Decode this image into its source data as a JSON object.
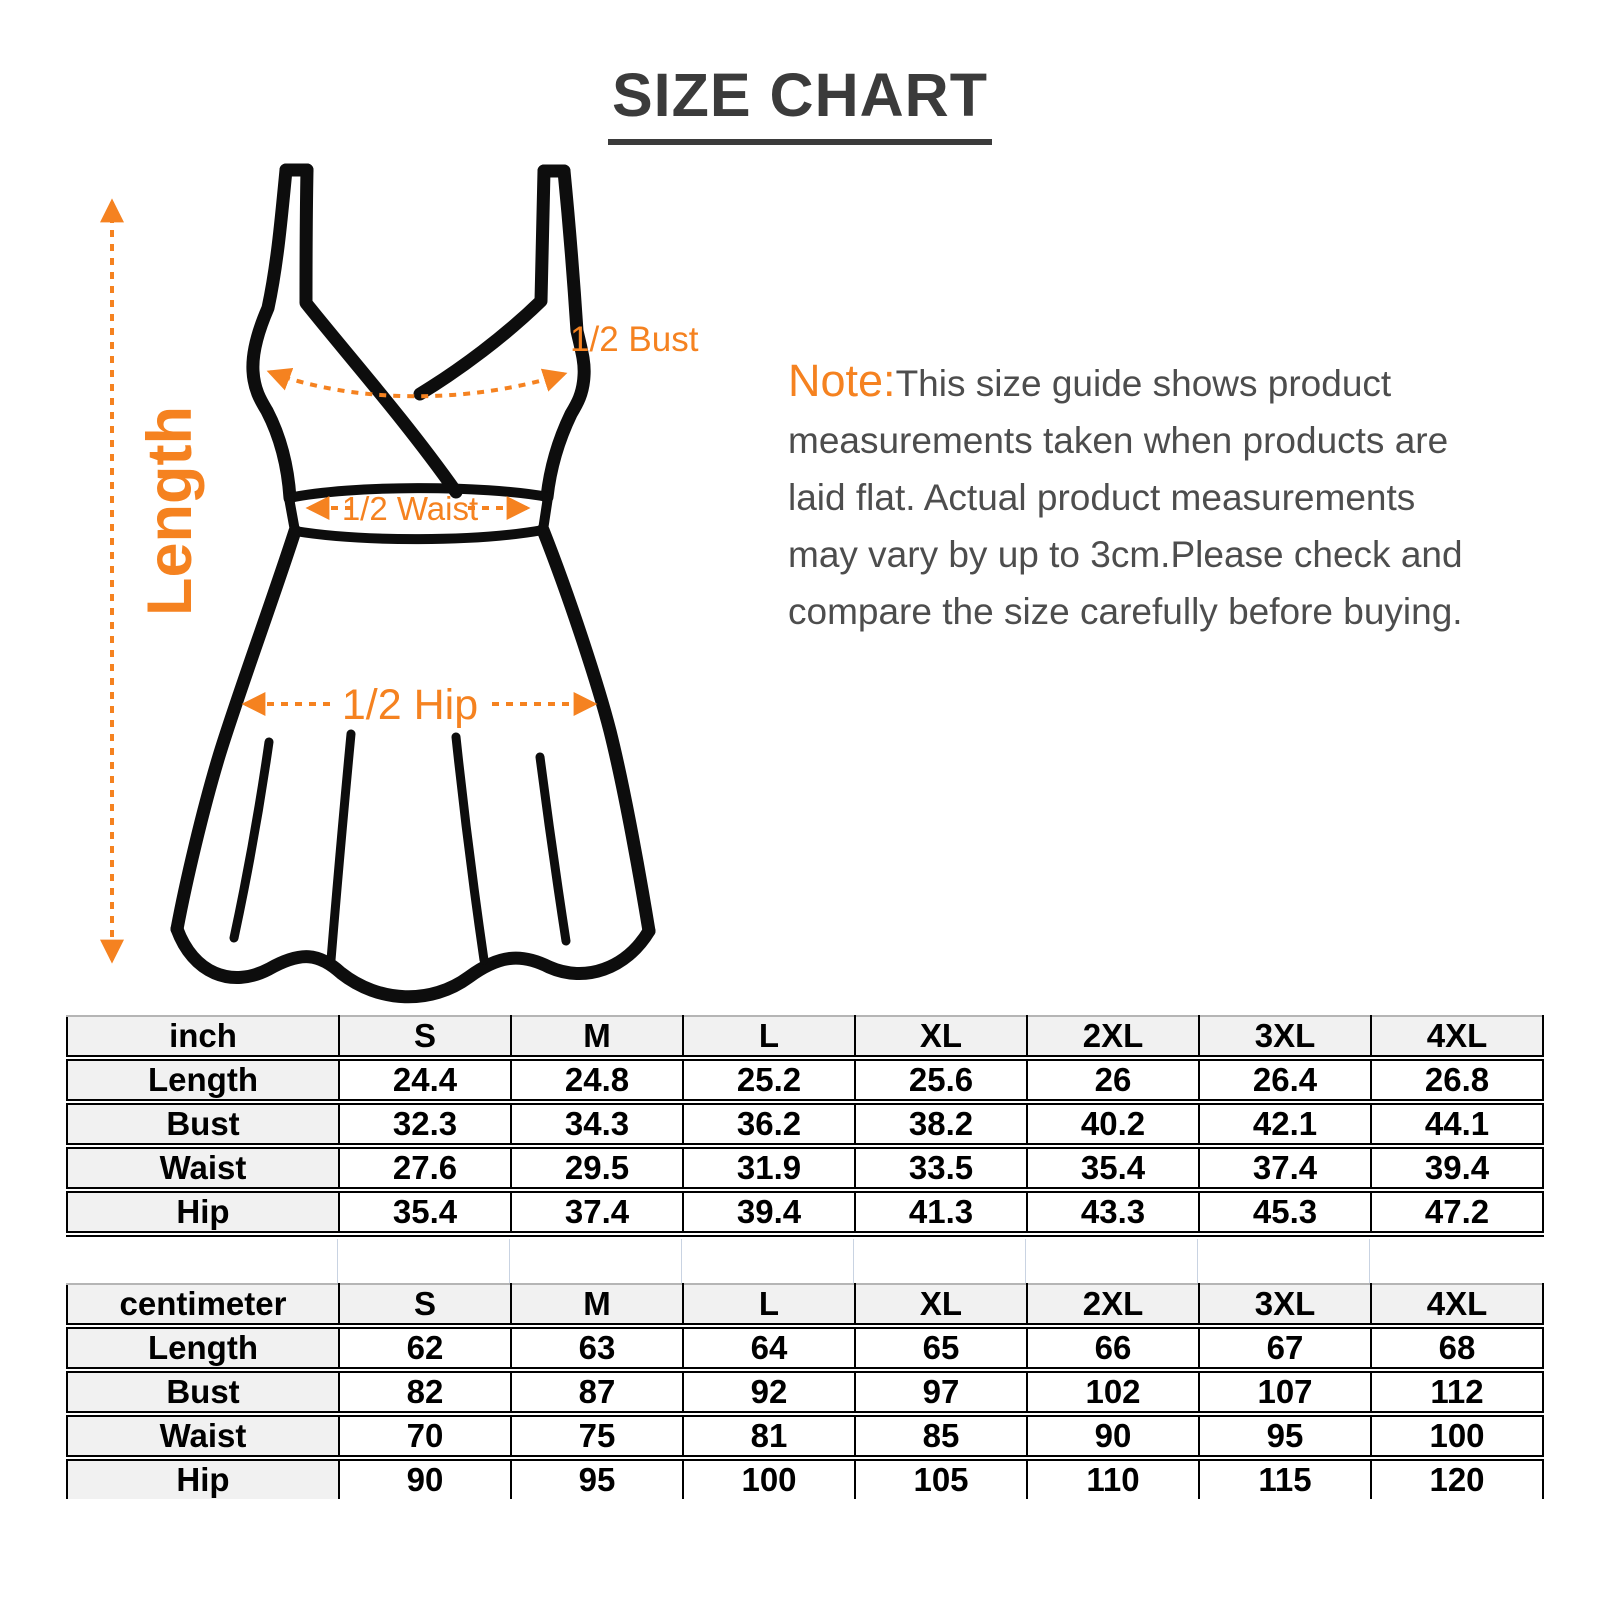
{
  "title": "SIZE CHART",
  "diagram": {
    "length_label": "Length",
    "bust_label": "1/2 Bust",
    "waist_label": "1/2 Waist",
    "hip_label": "1/2 Hip"
  },
  "note": {
    "label": "Note:",
    "lines": [
      "This size guide shows product",
      "measurements taken when products are",
      "laid flat. Actual product measurements",
      "may vary by up to 3cm.Please check and",
      "compare the size carefully before buying."
    ]
  },
  "size_tables": [
    {
      "unit": "inch",
      "sizes": [
        "S",
        "M",
        "L",
        "XL",
        "2XL",
        "3XL",
        "4XL"
      ],
      "rows": [
        {
          "label": "Length",
          "values": [
            "24.4",
            "24.8",
            "25.2",
            "25.6",
            "26",
            "26.4",
            "26.8"
          ]
        },
        {
          "label": "Bust",
          "values": [
            "32.3",
            "34.3",
            "36.2",
            "38.2",
            "40.2",
            "42.1",
            "44.1"
          ]
        },
        {
          "label": "Waist",
          "values": [
            "27.6",
            "29.5",
            "31.9",
            "33.5",
            "35.4",
            "37.4",
            "39.4"
          ]
        },
        {
          "label": "Hip",
          "values": [
            "35.4",
            "37.4",
            "39.4",
            "41.3",
            "43.3",
            "45.3",
            "47.2"
          ]
        }
      ]
    },
    {
      "unit": "centimeter",
      "sizes": [
        "S",
        "M",
        "L",
        "XL",
        "2XL",
        "3XL",
        "4XL"
      ],
      "rows": [
        {
          "label": "Length",
          "values": [
            "62",
            "63",
            "64",
            "65",
            "66",
            "67",
            "68"
          ]
        },
        {
          "label": "Bust",
          "values": [
            "82",
            "87",
            "92",
            "97",
            "102",
            "107",
            "112"
          ]
        },
        {
          "label": "Waist",
          "values": [
            "70",
            "75",
            "81",
            "85",
            "90",
            "95",
            "100"
          ]
        },
        {
          "label": "Hip",
          "values": [
            "90",
            "95",
            "100",
            "105",
            "110",
            "115",
            "120"
          ]
        }
      ]
    }
  ],
  "colors": {
    "accent_orange": "#F58220",
    "title_gray": "#3b3b3b",
    "note_gray": "#4d4d4d",
    "cell_gray": "#f1f1f1"
  }
}
